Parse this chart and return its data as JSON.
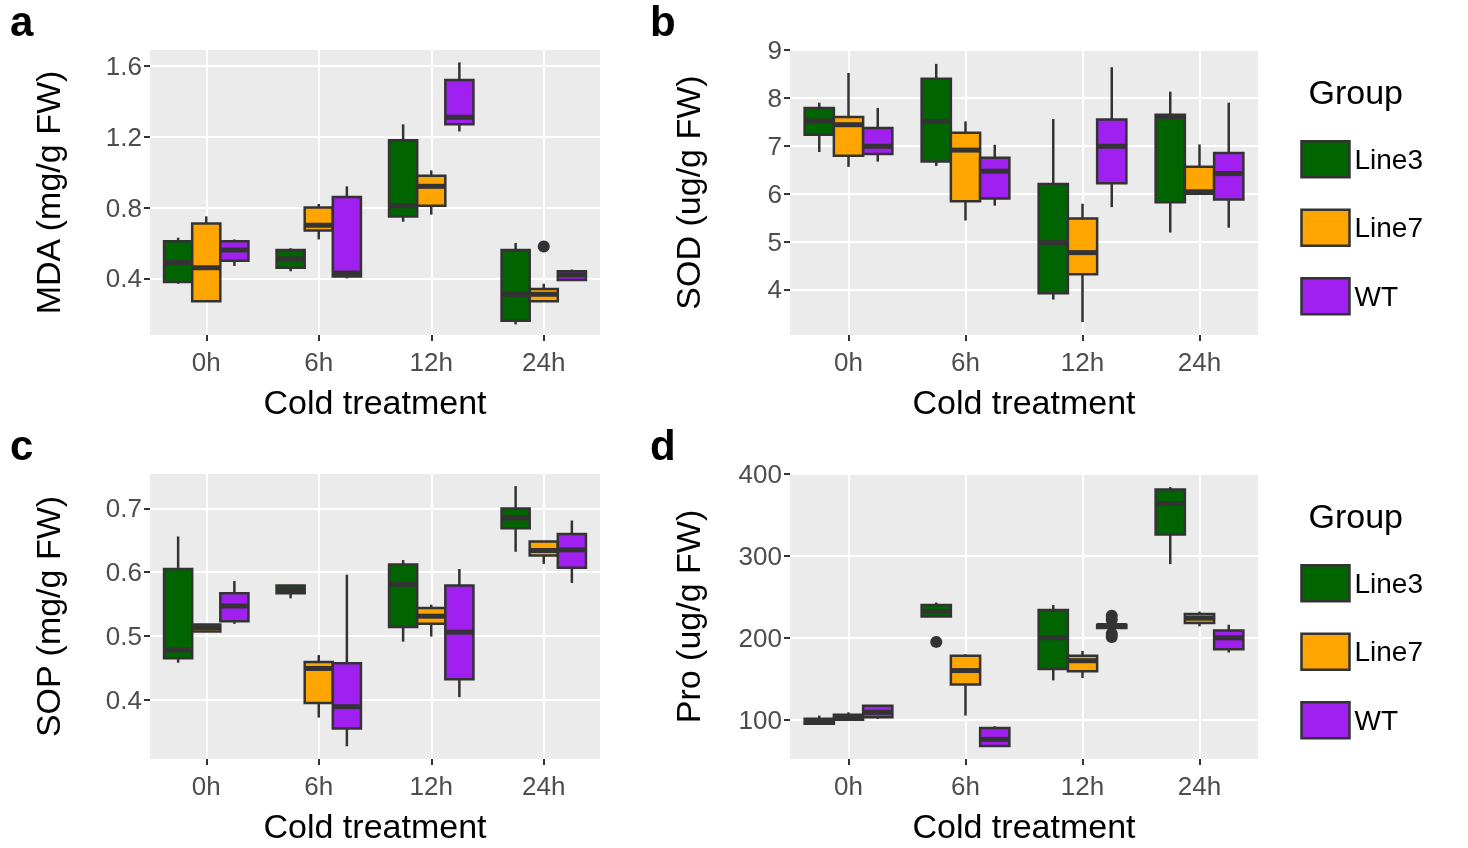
{
  "chart_data": [
    {
      "type": "box",
      "annotations": [
        "a"
      ],
      "xlabel": "Cold treatment",
      "ylabel": "MDA (mg/g FW)",
      "categories": [
        "0h",
        "6h",
        "12h",
        "24h"
      ],
      "ylim": [
        0.08,
        1.69
      ],
      "yticks": [
        0.4,
        0.8,
        1.2,
        1.6
      ],
      "grid": true,
      "legend": false,
      "series": [
        {
          "color": "#006400",
          "boxes": [
            {
              "low": 0.37,
              "q1": 0.38,
              "median": 0.49,
              "q3": 0.61,
              "high": 0.63
            },
            {
              "low": 0.44,
              "q1": 0.46,
              "median": 0.51,
              "q3": 0.56,
              "high": 0.57
            },
            {
              "low": 0.72,
              "q1": 0.75,
              "median": 0.81,
              "q3": 1.18,
              "high": 1.27
            },
            {
              "low": 0.14,
              "q1": 0.16,
              "median": 0.31,
              "q3": 0.56,
              "high": 0.6
            }
          ]
        },
        {
          "color": "#ffa500",
          "boxes": [
            {
              "low": 0.27,
              "q1": 0.27,
              "median": 0.46,
              "q3": 0.71,
              "high": 0.75
            },
            {
              "low": 0.62,
              "q1": 0.67,
              "median": 0.7,
              "q3": 0.8,
              "high": 0.82
            },
            {
              "low": 0.76,
              "q1": 0.81,
              "median": 0.92,
              "q3": 0.98,
              "high": 1.01
            },
            {
              "low": 0.27,
              "q1": 0.27,
              "median": 0.31,
              "q3": 0.34,
              "high": 0.37,
              "outliers": [
                0.58
              ]
            }
          ]
        },
        {
          "color": "#a020f0",
          "boxes": [
            {
              "low": 0.47,
              "q1": 0.5,
              "median": 0.56,
              "q3": 0.61,
              "high": 0.62
            },
            {
              "low": 0.4,
              "q1": 0.41,
              "median": 0.43,
              "q3": 0.86,
              "high": 0.92
            },
            {
              "low": 1.23,
              "q1": 1.27,
              "median": 1.31,
              "q3": 1.52,
              "high": 1.62
            },
            {
              "low": 0.39,
              "q1": 0.39,
              "median": 0.42,
              "q3": 0.44,
              "high": 0.45
            }
          ]
        }
      ]
    },
    {
      "type": "box",
      "annotations": [
        "b"
      ],
      "xlabel": "Cold treatment",
      "ylabel": "SOD (ug/g FW)",
      "categories": [
        "0h",
        "6h",
        "12h",
        "24h"
      ],
      "ylim": [
        3.05,
        9.0
      ],
      "yticks": [
        4,
        5,
        6,
        7,
        8,
        9
      ],
      "grid": true,
      "legend": "right",
      "legend_title": "Group",
      "series": [
        {
          "name": "Line3",
          "color": "#006400",
          "boxes": [
            {
              "low": 6.87,
              "q1": 7.23,
              "median": 7.52,
              "q3": 7.79,
              "high": 7.9
            },
            {
              "low": 6.58,
              "q1": 6.67,
              "median": 7.51,
              "q3": 8.4,
              "high": 8.71
            },
            {
              "low": 3.79,
              "q1": 3.92,
              "median": 4.98,
              "q3": 6.2,
              "high": 7.56
            },
            {
              "low": 5.19,
              "q1": 5.82,
              "median": 7.61,
              "q3": 7.65,
              "high": 8.13
            }
          ]
        },
        {
          "name": "Line7",
          "color": "#ffa500",
          "boxes": [
            {
              "low": 6.56,
              "q1": 6.79,
              "median": 7.44,
              "q3": 7.6,
              "high": 8.52
            },
            {
              "low": 5.44,
              "q1": 5.84,
              "median": 6.91,
              "q3": 7.27,
              "high": 7.51
            },
            {
              "low": 3.32,
              "q1": 4.32,
              "median": 4.77,
              "q3": 5.48,
              "high": 5.79
            },
            {
              "low": 6.0,
              "q1": 6.0,
              "median": 6.04,
              "q3": 6.56,
              "high": 7.03
            }
          ]
        },
        {
          "name": "WT",
          "color": "#a020f0",
          "boxes": [
            {
              "low": 6.67,
              "q1": 6.83,
              "median": 6.99,
              "q3": 7.37,
              "high": 7.79
            },
            {
              "low": 5.75,
              "q1": 5.9,
              "median": 6.47,
              "q3": 6.75,
              "high": 7.02
            },
            {
              "low": 5.72,
              "q1": 6.22,
              "median": 6.99,
              "q3": 7.55,
              "high": 8.64
            },
            {
              "low": 5.29,
              "q1": 5.88,
              "median": 6.42,
              "q3": 6.85,
              "high": 7.9
            }
          ]
        }
      ]
    },
    {
      "type": "box",
      "annotations": [
        "c"
      ],
      "xlabel": "Cold treatment",
      "ylabel": "SOP (mg/g FW)",
      "categories": [
        "0h",
        "6h",
        "12h",
        "24h"
      ],
      "ylim": [
        0.307,
        0.754
      ],
      "yticks": [
        0.4,
        0.5,
        0.6,
        0.7
      ],
      "grid": true,
      "legend": false,
      "series": [
        {
          "color": "#006400",
          "boxes": [
            {
              "low": 0.458,
              "q1": 0.465,
              "median": 0.478,
              "q3": 0.605,
              "high": 0.656
            },
            {
              "low": 0.559,
              "q1": 0.567,
              "median": 0.572,
              "q3": 0.579,
              "high": 0.58
            },
            {
              "low": 0.491,
              "q1": 0.514,
              "median": 0.581,
              "q3": 0.612,
              "high": 0.619
            },
            {
              "low": 0.632,
              "q1": 0.669,
              "median": 0.685,
              "q3": 0.7,
              "high": 0.735
            }
          ]
        },
        {
          "color": "#ffa500",
          "boxes": [
            {
              "low": 0.507,
              "q1": 0.507,
              "median": 0.513,
              "q3": 0.518,
              "high": 0.518
            },
            {
              "low": 0.372,
              "q1": 0.395,
              "median": 0.449,
              "q3": 0.459,
              "high": 0.47
            },
            {
              "low": 0.499,
              "q1": 0.519,
              "median": 0.531,
              "q3": 0.544,
              "high": 0.549
            },
            {
              "low": 0.613,
              "q1": 0.626,
              "median": 0.634,
              "q3": 0.648,
              "high": 0.648
            }
          ]
        },
        {
          "color": "#a020f0",
          "boxes": [
            {
              "low": 0.519,
              "q1": 0.523,
              "median": 0.547,
              "q3": 0.567,
              "high": 0.586
            },
            {
              "low": 0.327,
              "q1": 0.355,
              "median": 0.389,
              "q3": 0.457,
              "high": 0.596
            },
            {
              "low": 0.404,
              "q1": 0.432,
              "median": 0.506,
              "q3": 0.579,
              "high": 0.605
            },
            {
              "low": 0.583,
              "q1": 0.607,
              "median": 0.635,
              "q3": 0.66,
              "high": 0.681
            }
          ]
        }
      ]
    },
    {
      "type": "box",
      "annotations": [
        "d"
      ],
      "xlabel": "Cold treatment",
      "ylabel": "Pro (ug/g FW)",
      "categories": [
        "0h",
        "6h",
        "12h",
        "24h"
      ],
      "ylim": [
        52,
        400
      ],
      "yticks": [
        100,
        200,
        300,
        400
      ],
      "grid": true,
      "legend": "right",
      "legend_title": "Group",
      "series": [
        {
          "name": "Line3",
          "color": "#006400",
          "boxes": [
            {
              "low": 95,
              "q1": 95,
              "median": 98,
              "q3": 101,
              "high": 105
            },
            {
              "low": 226,
              "q1": 226,
              "median": 232,
              "q3": 240,
              "high": 243,
              "outliers": [
                195
              ]
            },
            {
              "low": 148,
              "q1": 162,
              "median": 200,
              "q3": 234,
              "high": 240
            },
            {
              "low": 290,
              "q1": 326,
              "median": 364,
              "q3": 381,
              "high": 384
            }
          ]
        },
        {
          "name": "Line7",
          "color": "#ffa500",
          "boxes": [
            {
              "low": 100,
              "q1": 100,
              "median": 103,
              "q3": 106,
              "high": 109
            },
            {
              "low": 105,
              "q1": 143,
              "median": 160,
              "q3": 178,
              "high": 180
            },
            {
              "low": 151,
              "q1": 159,
              "median": 172,
              "q3": 178,
              "high": 184
            },
            {
              "low": 214,
              "q1": 218,
              "median": 224,
              "q3": 229,
              "high": 232
            }
          ]
        },
        {
          "name": "WT",
          "color": "#a020f0",
          "boxes": [
            {
              "low": 101,
              "q1": 103,
              "median": 109,
              "q3": 117,
              "high": 117
            },
            {
              "low": 68,
              "q1": 68,
              "median": 76,
              "q3": 90,
              "high": 92
            },
            {
              "low": 210,
              "q1": 212,
              "median": 215,
              "q3": 216,
              "high": 218,
              "outliers": [
                227,
                222,
                205,
                201
              ]
            },
            {
              "low": 182,
              "q1": 186,
              "median": 200,
              "q3": 209,
              "high": 216
            }
          ]
        }
      ]
    }
  ]
}
